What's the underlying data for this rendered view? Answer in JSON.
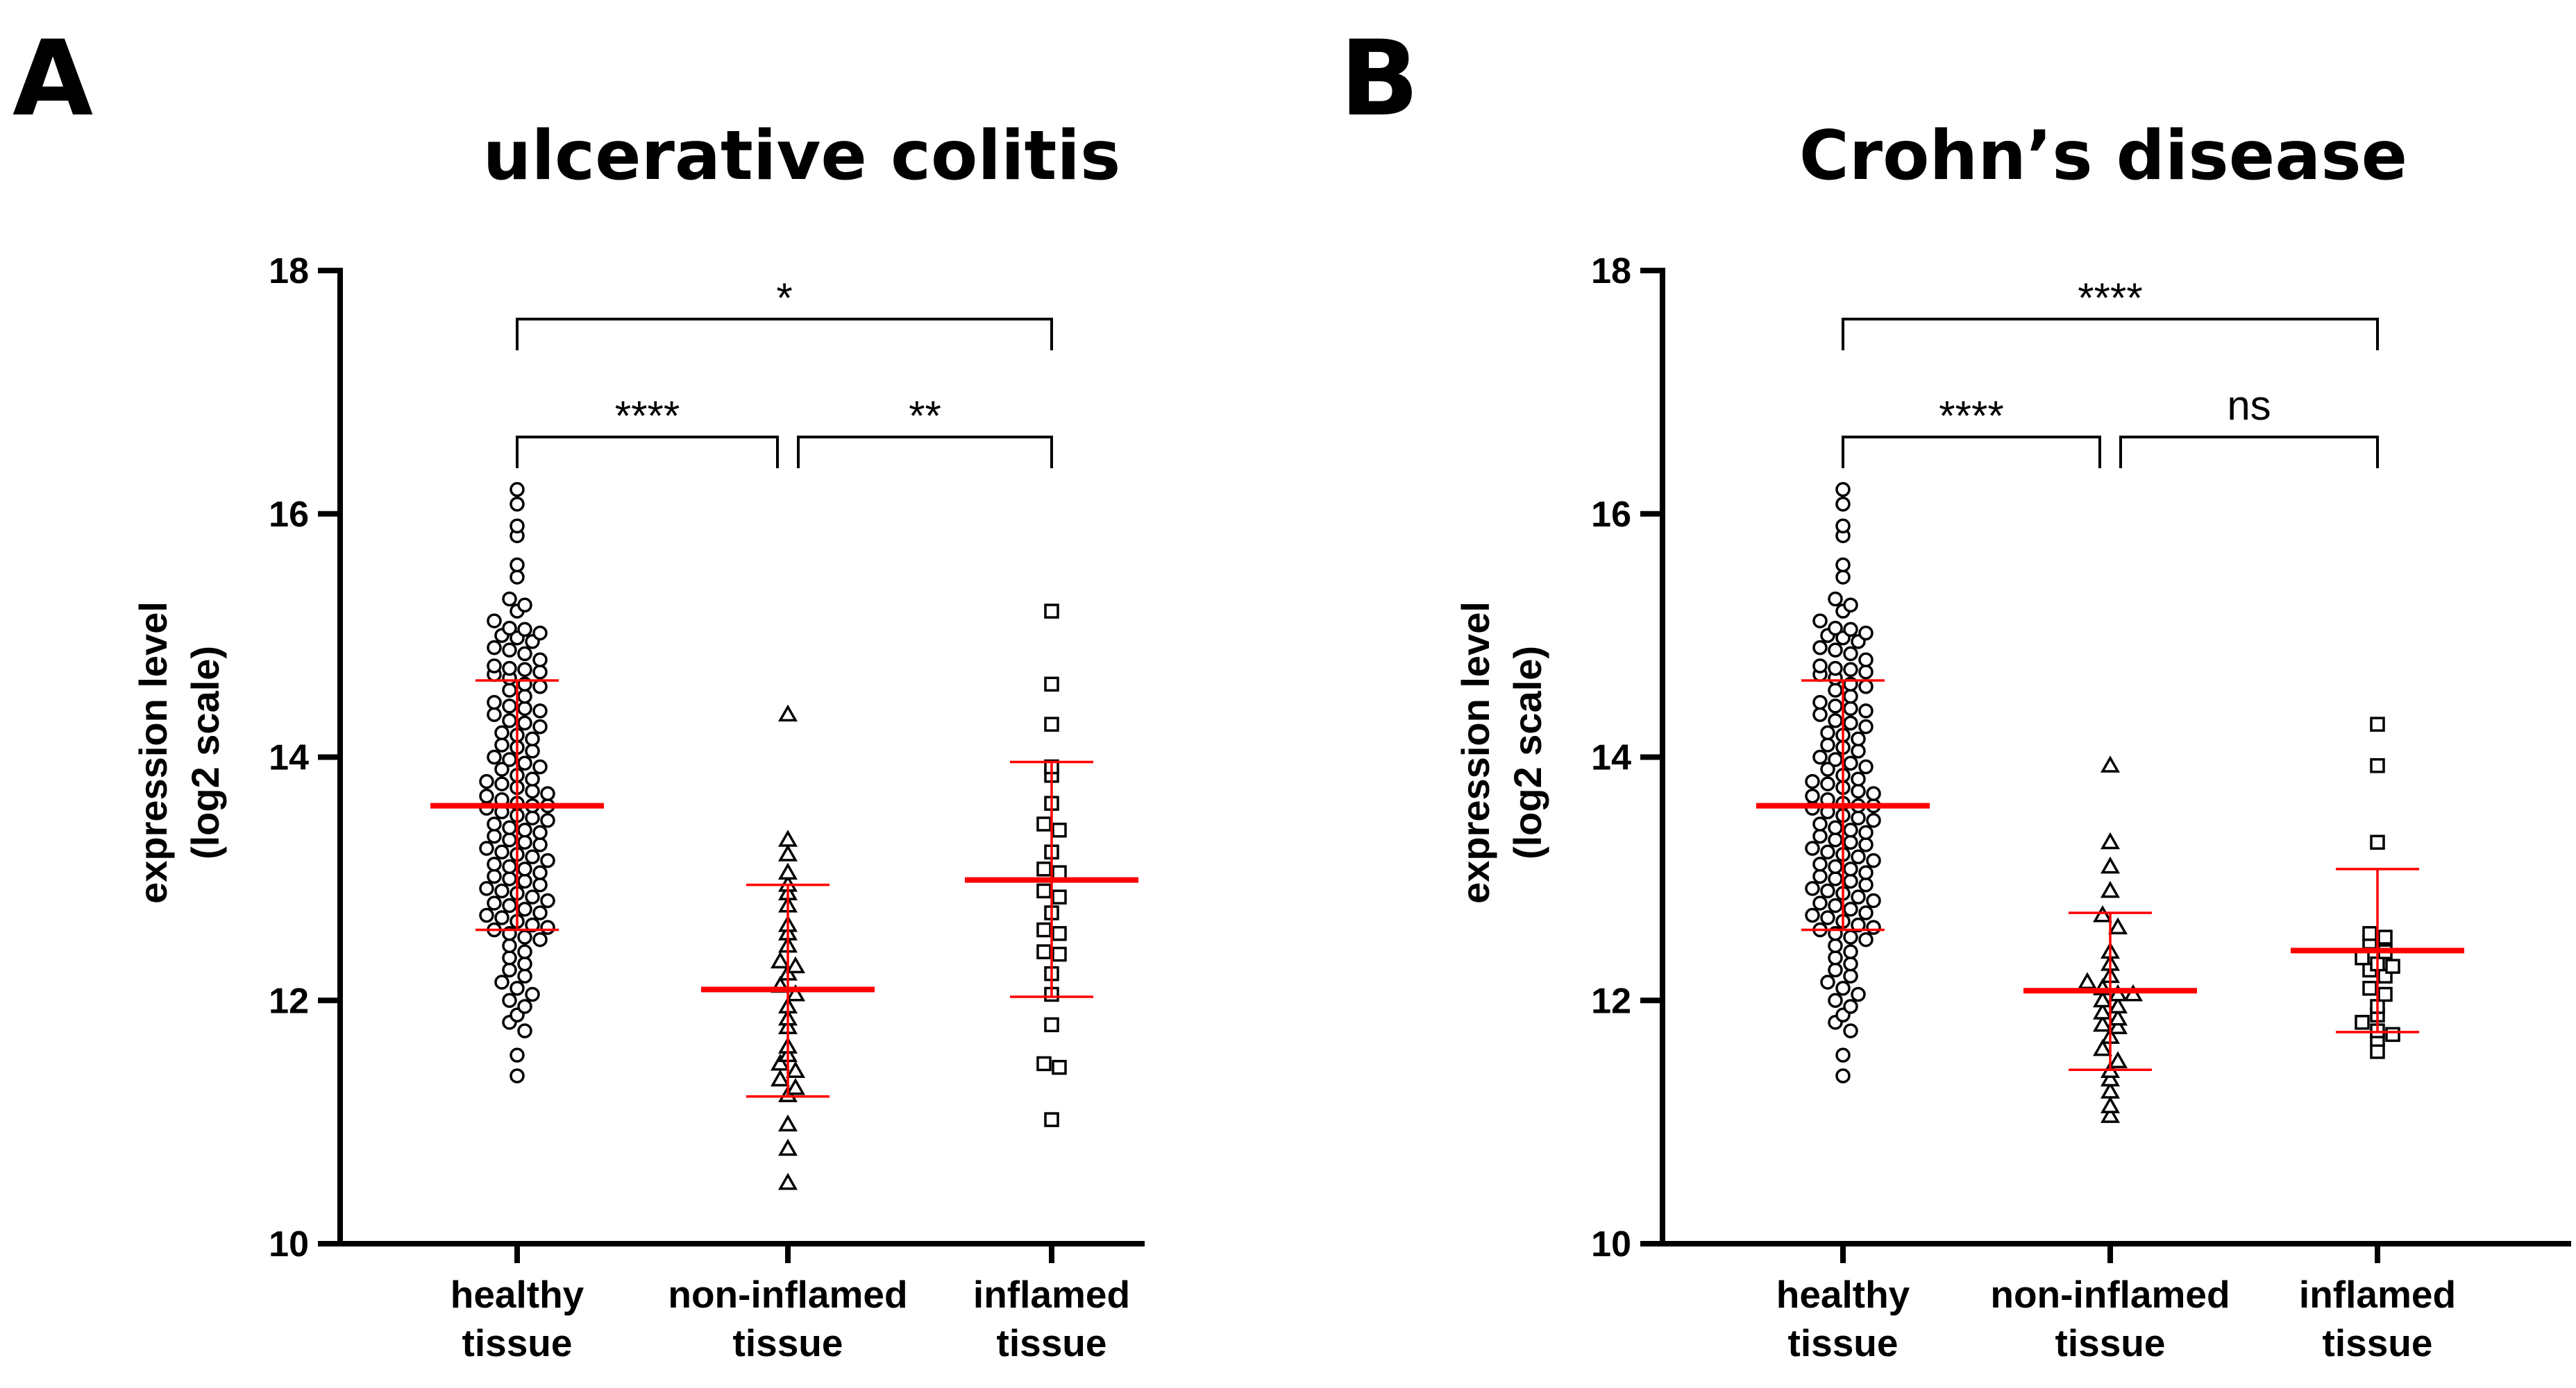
{
  "chart_data": [
    {
      "type": "scatter",
      "panel_label": "A",
      "title": "ulcerative colitis",
      "ylabel": [
        "expression level",
        "(log2 scale)"
      ],
      "ylim": [
        10,
        18
      ],
      "yticks": [
        "10",
        "12",
        "14",
        "16",
        "18"
      ],
      "categories": [
        [
          "healthy",
          "tissue"
        ],
        [
          "non-inflamed",
          "tissue"
        ],
        [
          "inflamed",
          "tissue"
        ]
      ],
      "marker_shapes": [
        "circle",
        "triangle",
        "square"
      ],
      "summary_color": "#ff0000",
      "groups": [
        {
          "mean": 13.6,
          "sd_low": 12.58,
          "sd_high": 14.63,
          "values": [
            16.2,
            16.08,
            15.9,
            15.82,
            15.58,
            15.48,
            15.3,
            15.25,
            15.2,
            15.12,
            15.06,
            15.05,
            15.02,
            15.0,
            14.98,
            14.95,
            14.9,
            14.88,
            14.85,
            14.8,
            14.75,
            14.73,
            14.72,
            14.7,
            14.68,
            14.65,
            14.6,
            14.58,
            14.55,
            14.5,
            14.45,
            14.42,
            14.4,
            14.38,
            14.35,
            14.3,
            14.28,
            14.25,
            14.2,
            14.18,
            14.15,
            14.1,
            14.08,
            14.05,
            14.0,
            13.98,
            13.95,
            13.92,
            13.9,
            13.85,
            13.82,
            13.8,
            13.78,
            13.75,
            13.72,
            13.7,
            13.68,
            13.65,
            13.62,
            13.6,
            13.6,
            13.58,
            13.55,
            13.52,
            13.5,
            13.48,
            13.45,
            13.42,
            13.4,
            13.38,
            13.35,
            13.32,
            13.3,
            13.28,
            13.25,
            13.22,
            13.2,
            13.18,
            13.15,
            13.12,
            13.1,
            13.08,
            13.05,
            13.02,
            13.0,
            12.98,
            12.95,
            12.92,
            12.9,
            12.88,
            12.85,
            12.82,
            12.8,
            12.78,
            12.75,
            12.72,
            12.7,
            12.68,
            12.65,
            12.62,
            12.6,
            12.58,
            12.55,
            12.52,
            12.5,
            12.45,
            12.4,
            12.35,
            12.3,
            12.25,
            12.2,
            12.15,
            12.1,
            12.05,
            12.0,
            11.95,
            11.88,
            11.82,
            11.75,
            11.55,
            11.38
          ]
        },
        {
          "mean": 12.09,
          "sd_low": 11.21,
          "sd_high": 12.95,
          "values": [
            14.35,
            13.32,
            13.2,
            13.05,
            12.95,
            12.88,
            12.78,
            12.62,
            12.55,
            12.45,
            12.32,
            12.28,
            12.22,
            12.12,
            12.05,
            11.95,
            11.85,
            11.78,
            11.62,
            11.55,
            11.48,
            11.42,
            11.35,
            11.28,
            11.22,
            10.98,
            10.78,
            10.5
          ]
        },
        {
          "mean": 12.99,
          "sd_low": 12.03,
          "sd_high": 13.96,
          "values": [
            15.2,
            14.6,
            14.27,
            13.92,
            13.85,
            13.62,
            13.45,
            13.4,
            13.22,
            13.08,
            13.05,
            12.9,
            12.85,
            12.72,
            12.58,
            12.55,
            12.4,
            12.38,
            12.22,
            12.05,
            11.8,
            11.48,
            11.45,
            11.02
          ]
        }
      ],
      "comparisons": [
        {
          "from": 0,
          "to": 2,
          "label": "*"
        },
        {
          "from": 0,
          "to": 1,
          "label": "****"
        },
        {
          "from": 1,
          "to": 2,
          "label": "**"
        }
      ]
    },
    {
      "type": "scatter",
      "panel_label": "B",
      "title": "Crohn’s disease",
      "ylabel": [
        "expression level",
        "(log2 scale)"
      ],
      "ylim": [
        10,
        18
      ],
      "yticks": [
        "10",
        "12",
        "14",
        "16",
        "18"
      ],
      "categories": [
        [
          "healthy",
          "tissue"
        ],
        [
          "non-inflamed",
          "tissue"
        ],
        [
          "inflamed",
          "tissue"
        ]
      ],
      "marker_shapes": [
        "circle",
        "triangle",
        "square"
      ],
      "summary_color": "#ff0000",
      "groups": [
        {
          "mean": 13.6,
          "sd_low": 12.58,
          "sd_high": 14.63,
          "values": [
            16.2,
            16.08,
            15.9,
            15.82,
            15.58,
            15.48,
            15.3,
            15.25,
            15.2,
            15.12,
            15.06,
            15.05,
            15.02,
            15.0,
            14.98,
            14.95,
            14.9,
            14.88,
            14.85,
            14.8,
            14.75,
            14.73,
            14.72,
            14.7,
            14.68,
            14.65,
            14.6,
            14.58,
            14.55,
            14.5,
            14.45,
            14.42,
            14.4,
            14.38,
            14.35,
            14.3,
            14.28,
            14.25,
            14.2,
            14.18,
            14.15,
            14.1,
            14.08,
            14.05,
            14.0,
            13.98,
            13.95,
            13.92,
            13.9,
            13.85,
            13.82,
            13.8,
            13.78,
            13.75,
            13.72,
            13.7,
            13.68,
            13.65,
            13.62,
            13.6,
            13.6,
            13.58,
            13.55,
            13.52,
            13.5,
            13.48,
            13.45,
            13.42,
            13.4,
            13.38,
            13.35,
            13.32,
            13.3,
            13.28,
            13.25,
            13.22,
            13.2,
            13.18,
            13.15,
            13.12,
            13.1,
            13.08,
            13.05,
            13.02,
            13.0,
            12.98,
            12.95,
            12.92,
            12.9,
            12.88,
            12.85,
            12.82,
            12.8,
            12.78,
            12.75,
            12.72,
            12.7,
            12.68,
            12.65,
            12.62,
            12.6,
            12.58,
            12.55,
            12.52,
            12.5,
            12.45,
            12.4,
            12.35,
            12.3,
            12.25,
            12.2,
            12.15,
            12.1,
            12.05,
            12.0,
            11.95,
            11.88,
            11.82,
            11.75,
            11.55,
            11.38
          ]
        },
        {
          "mean": 12.08,
          "sd_low": 11.43,
          "sd_high": 12.72,
          "values": [
            13.93,
            13.3,
            13.1,
            12.9,
            12.7,
            12.6,
            12.4,
            12.3,
            12.2,
            12.15,
            12.1,
            12.05,
            12.05,
            12.0,
            11.95,
            11.9,
            11.85,
            11.8,
            11.78,
            11.7,
            11.6,
            11.5,
            11.42,
            11.35,
            11.25,
            11.13,
            11.05
          ]
        },
        {
          "mean": 12.41,
          "sd_low": 11.74,
          "sd_high": 13.08,
          "values": [
            14.27,
            13.93,
            13.3,
            12.55,
            12.52,
            12.48,
            12.4,
            12.35,
            12.3,
            12.28,
            12.25,
            12.2,
            12.1,
            12.05,
            11.95,
            11.88,
            11.82,
            11.75,
            11.72,
            11.68,
            11.58
          ]
        }
      ],
      "comparisons": [
        {
          "from": 0,
          "to": 2,
          "label": "****"
        },
        {
          "from": 0,
          "to": 1,
          "label": "****"
        },
        {
          "from": 1,
          "to": 2,
          "label": "ns"
        }
      ]
    }
  ]
}
